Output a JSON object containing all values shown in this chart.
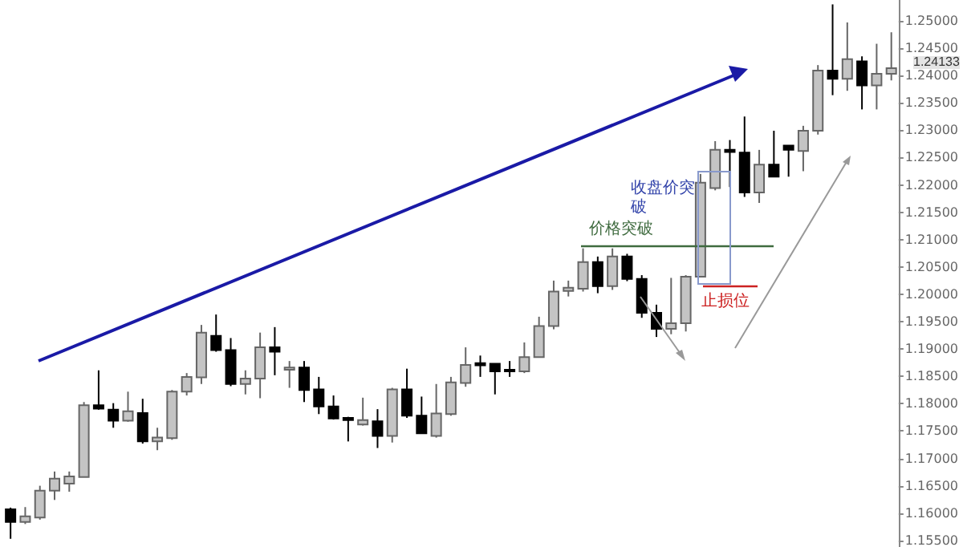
{
  "chart_data": {
    "type": "candlestick",
    "categories": [
      null,
      null,
      null,
      null,
      null,
      null,
      null,
      null,
      null,
      null,
      null,
      null,
      null,
      null,
      null,
      null,
      null,
      null,
      null,
      null,
      null,
      null,
      null,
      null,
      null,
      null,
      null,
      null,
      null,
      null,
      null,
      null,
      null,
      null,
      null,
      null,
      null,
      null,
      null,
      null,
      null,
      null,
      null,
      null,
      null,
      null,
      null,
      null,
      null,
      null,
      null,
      null,
      null,
      null,
      null,
      null,
      null,
      null,
      null,
      null,
      null
    ],
    "ohlc": [
      [
        1.1607,
        1.161,
        1.1553,
        1.1584
      ],
      [
        1.1584,
        1.1611,
        1.158,
        1.1594
      ],
      [
        1.1592,
        1.165,
        1.1588,
        1.1641
      ],
      [
        1.1641,
        1.1676,
        1.1624,
        1.1663
      ],
      [
        1.1654,
        1.1676,
        1.1639,
        1.1667
      ],
      [
        1.1666,
        1.1803,
        1.1666,
        1.1797
      ],
      [
        1.1797,
        1.1861,
        1.1789,
        1.1791
      ],
      [
        1.1789,
        1.1801,
        1.1756,
        1.1769
      ],
      [
        1.1769,
        1.1822,
        1.1767,
        1.1786
      ],
      [
        1.1783,
        1.1809,
        1.1727,
        1.1731
      ],
      [
        1.1731,
        1.1756,
        1.1715,
        1.1738
      ],
      [
        1.1737,
        1.1825,
        1.1734,
        1.1822
      ],
      [
        1.1822,
        1.1856,
        1.1815,
        1.1849
      ],
      [
        1.1848,
        1.1944,
        1.1836,
        1.193
      ],
      [
        1.1924,
        1.1963,
        1.1895,
        1.1898
      ],
      [
        1.1898,
        1.192,
        1.1832,
        1.1836
      ],
      [
        1.1836,
        1.1861,
        1.1817,
        1.1846
      ],
      [
        1.1846,
        1.193,
        1.181,
        1.1903
      ],
      [
        1.1903,
        1.194,
        1.1852,
        1.1895
      ],
      [
        1.1862,
        1.1878,
        1.1829,
        1.1866
      ],
      [
        1.1866,
        1.1878,
        1.1803,
        1.1825
      ],
      [
        1.1826,
        1.1849,
        1.1781,
        1.1795
      ],
      [
        1.1795,
        1.1815,
        1.1771,
        1.1773
      ],
      [
        1.1774,
        1.1776,
        1.1731,
        1.177
      ],
      [
        1.1762,
        1.1811,
        1.176,
        1.177
      ],
      [
        1.1768,
        1.179,
        1.1719,
        1.1741
      ],
      [
        1.1741,
        1.1829,
        1.1729,
        1.1826
      ],
      [
        1.1826,
        1.1864,
        1.1774,
        1.1778
      ],
      [
        1.1778,
        1.1813,
        1.1746,
        1.1746
      ],
      [
        1.1741,
        1.1836,
        1.1738,
        1.1782
      ],
      [
        1.1781,
        1.1849,
        1.1778,
        1.1839
      ],
      [
        1.1838,
        1.1903,
        1.1831,
        1.1871
      ],
      [
        1.1874,
        1.1888,
        1.1849,
        1.187
      ],
      [
        1.1873,
        1.1873,
        1.1817,
        1.1859
      ],
      [
        1.1862,
        1.1878,
        1.1849,
        1.1859
      ],
      [
        1.1859,
        1.1912,
        1.1856,
        1.1885
      ],
      [
        1.1885,
        1.1959,
        1.1885,
        1.1942
      ],
      [
        1.1942,
        1.2025,
        1.1936,
        1.2005
      ],
      [
        1.2006,
        1.2025,
        1.1996,
        1.2012
      ],
      [
        1.201,
        1.2084,
        1.2005,
        1.2059
      ],
      [
        1.2059,
        1.2069,
        1.2002,
        1.2015
      ],
      [
        1.2015,
        1.2084,
        1.2008,
        1.2069
      ],
      [
        1.2069,
        1.2074,
        1.2024,
        1.2028
      ],
      [
        1.2028,
        1.2035,
        1.1957,
        1.1966
      ],
      [
        1.1966,
        1.1981,
        1.1922,
        1.1937
      ],
      [
        1.1937,
        1.203,
        1.1927,
        1.1947
      ],
      [
        1.1947,
        1.2035,
        1.1932,
        1.2032
      ],
      [
        1.2032,
        1.222,
        1.2031,
        1.2204
      ],
      [
        1.2194,
        1.228,
        1.219,
        1.2264
      ],
      [
        1.2264,
        1.2282,
        1.2196,
        1.226
      ],
      [
        1.2259,
        1.2325,
        1.2178,
        1.2186
      ],
      [
        1.2186,
        1.2264,
        1.2167,
        1.2237
      ],
      [
        1.2237,
        1.2299,
        1.2215,
        1.2215
      ],
      [
        1.2272,
        1.2272,
        1.2215,
        1.2264
      ],
      [
        1.2262,
        1.2308,
        1.2225,
        1.2299
      ],
      [
        1.2299,
        1.2419,
        1.2292,
        1.2409
      ],
      [
        1.2409,
        1.253,
        1.2364,
        1.2394
      ],
      [
        1.2394,
        1.2497,
        1.2372,
        1.243
      ],
      [
        1.2426,
        1.2435,
        1.2338,
        1.2382
      ],
      [
        1.2382,
        1.2458,
        1.2338,
        1.2403
      ],
      [
        1.2403,
        1.2479,
        1.2391,
        1.24133
      ]
    ],
    "ylim": [
      1.1538,
      1.2538
    ],
    "yticks": [
      {
        "value": 1.155,
        "label": "1.15500"
      },
      {
        "value": 1.16,
        "label": "1.16000"
      },
      {
        "value": 1.165,
        "label": "1.16500"
      },
      {
        "value": 1.17,
        "label": "1.17000"
      },
      {
        "value": 1.175,
        "label": "1.17500"
      },
      {
        "value": 1.18,
        "label": "1.18000"
      },
      {
        "value": 1.185,
        "label": "1.18500"
      },
      {
        "value": 1.19,
        "label": "1.19000"
      },
      {
        "value": 1.195,
        "label": "1.19500"
      },
      {
        "value": 1.2,
        "label": "1.20000"
      },
      {
        "value": 1.205,
        "label": "1.20500"
      },
      {
        "value": 1.21,
        "label": "1.21000"
      },
      {
        "value": 1.215,
        "label": "1.21500"
      },
      {
        "value": 1.22,
        "label": "1.22000"
      },
      {
        "value": 1.225,
        "label": "1.22500"
      },
      {
        "value": 1.23,
        "label": "1.23000"
      },
      {
        "value": 1.235,
        "label": "1.23500"
      },
      {
        "value": 1.24,
        "label": "1.24000"
      },
      {
        "value": 1.245,
        "label": "1.24500"
      },
      {
        "value": 1.25,
        "label": "1.25000"
      }
    ],
    "tick_labels": "y",
    "grid": false,
    "ref_lines": [
      {
        "axis": "y",
        "value": 1.2089,
        "label": "价格突破",
        "color": "#3f6b3f"
      },
      {
        "axis": "y",
        "value": 1.2016,
        "label": "止损位",
        "color": "#cc2222"
      }
    ],
    "annotations": [
      "收盘价突破",
      "1.24133"
    ]
  }
}
